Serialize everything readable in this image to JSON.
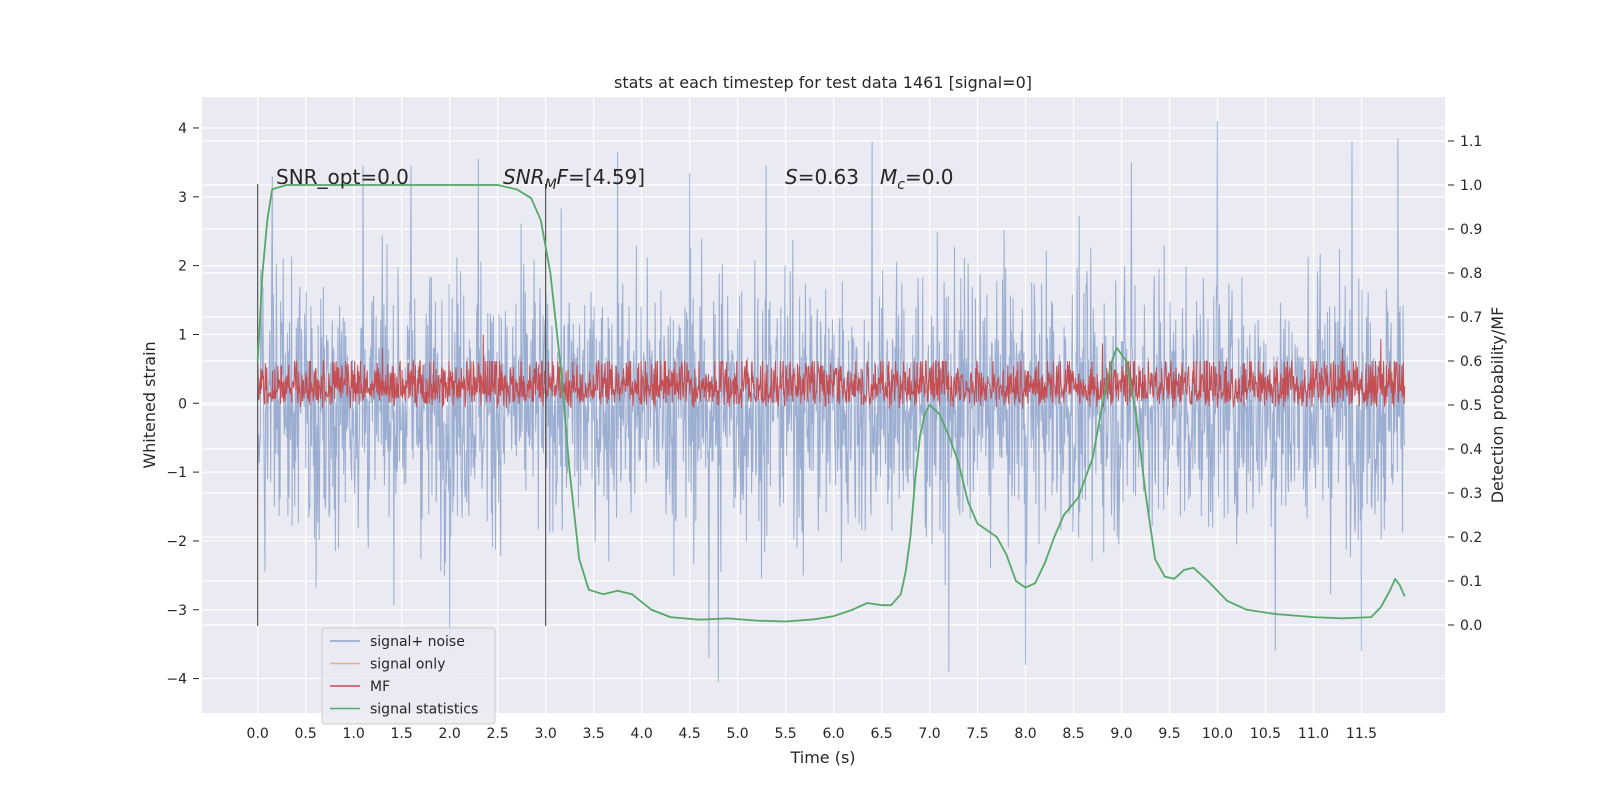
{
  "chart_data": {
    "type": "line",
    "title": "stats at each timestep for test data 1461 [signal=0]",
    "xlabel": "Time (s)",
    "ylabel": "Whitened strain",
    "ylabel_right": "Detection probability/MF",
    "xlim": [
      -0.58,
      12.37
    ],
    "ylim": [
      -4.5,
      4.45
    ],
    "ylim_right": [
      -0.2,
      1.2
    ],
    "x_ticks": [
      "0.0",
      "0.5",
      "1.0",
      "1.5",
      "2.0",
      "2.5",
      "3.0",
      "3.5",
      "4.0",
      "4.5",
      "5.0",
      "5.5",
      "6.0",
      "6.5",
      "7.0",
      "7.5",
      "8.0",
      "8.5",
      "9.0",
      "9.5",
      "10.0",
      "10.5",
      "11.0",
      "11.5"
    ],
    "y_ticks": [
      "4",
      "3",
      "2",
      "1",
      "0",
      "−1",
      "−2",
      "−3",
      "−4"
    ],
    "y_ticks_right": [
      "1.1",
      "1.0",
      "0.9",
      "0.8",
      "0.7",
      "0.6",
      "0.5",
      "0.4",
      "0.3",
      "0.2",
      "0.1",
      "0.0"
    ],
    "grid": true,
    "legend_position": "lower-left",
    "annotations": {
      "snr_opt": "SNR_opt=0.0",
      "snr_mf_main": "SNR",
      "snr_mf_sub": "M",
      "snr_mf_rest": "F=[4.59]",
      "s_main": "S",
      "s_rest": "=0.63",
      "mc_main": "M",
      "mc_sub": "c",
      "mc_rest": "=0.0"
    },
    "vertical_markers": [
      0.0,
      3.0
    ],
    "series": [
      {
        "name": "signal+ noise",
        "color": "#4c72b0",
        "axis": "left",
        "note": "dense whitened noise, approx. range -4 to 4",
        "x_range": [
          0.0,
          11.95
        ],
        "envelope_typical": [
          -2.6,
          2.6
        ],
        "peaks": [
          {
            "x": 0.15,
            "y": 3.3
          },
          {
            "x": 1.1,
            "y": 3.45
          },
          {
            "x": 1.6,
            "y": 3.45
          },
          {
            "x": 2.0,
            "y": 3.1
          },
          {
            "x": 2.3,
            "y": 3.55
          },
          {
            "x": 3.75,
            "y": 3.65
          },
          {
            "x": 4.5,
            "y": 3.35
          },
          {
            "x": 5.3,
            "y": 3.45
          },
          {
            "x": 6.4,
            "y": 3.8
          },
          {
            "x": 9.1,
            "y": 3.5
          },
          {
            "x": 10.0,
            "y": 4.1
          },
          {
            "x": 11.4,
            "y": 3.8
          },
          {
            "x": 11.88,
            "y": 3.85
          },
          {
            "x": 4.8,
            "y": -4.05
          },
          {
            "x": 7.2,
            "y": -3.9
          },
          {
            "x": 4.7,
            "y": -3.7
          },
          {
            "x": 8.0,
            "y": -3.8
          },
          {
            "x": 10.6,
            "y": -3.6
          },
          {
            "x": 2.0,
            "y": -3.6
          },
          {
            "x": 11.5,
            "y": -3.6
          }
        ]
      },
      {
        "name": "signal only",
        "color": "#dd8452",
        "axis": "left",
        "note": "zero everywhere (signal=0)"
      },
      {
        "name": "MF",
        "color": "#c44e52",
        "axis": "right",
        "note": "dense band, approx. 0.49 to 0.62 on right axis",
        "band": [
          0.49,
          0.6
        ],
        "peaks": [
          {
            "x": 1.3,
            "y": 0.63
          },
          {
            "x": 2.35,
            "y": 0.66
          },
          {
            "x": 11.7,
            "y": 0.65
          },
          {
            "x": 11.3,
            "y": 0.63
          },
          {
            "x": 8.8,
            "y": 0.64
          }
        ]
      },
      {
        "name": "signal statistics",
        "color": "#55a868",
        "axis": "right",
        "points": [
          [
            0.0,
            0.6
          ],
          [
            0.05,
            0.8
          ],
          [
            0.1,
            0.92
          ],
          [
            0.15,
            0.99
          ],
          [
            0.3,
            1.0
          ],
          [
            1.0,
            1.0
          ],
          [
            2.0,
            1.0
          ],
          [
            2.5,
            1.0
          ],
          [
            2.7,
            0.99
          ],
          [
            2.85,
            0.97
          ],
          [
            2.95,
            0.92
          ],
          [
            3.05,
            0.8
          ],
          [
            3.15,
            0.6
          ],
          [
            3.25,
            0.35
          ],
          [
            3.35,
            0.15
          ],
          [
            3.45,
            0.08
          ],
          [
            3.6,
            0.07
          ],
          [
            3.75,
            0.078
          ],
          [
            3.9,
            0.07
          ],
          [
            4.1,
            0.035
          ],
          [
            4.3,
            0.018
          ],
          [
            4.6,
            0.012
          ],
          [
            4.9,
            0.015
          ],
          [
            5.2,
            0.01
          ],
          [
            5.5,
            0.008
          ],
          [
            5.8,
            0.013
          ],
          [
            6.0,
            0.02
          ],
          [
            6.2,
            0.035
          ],
          [
            6.35,
            0.05
          ],
          [
            6.5,
            0.045
          ],
          [
            6.6,
            0.045
          ],
          [
            6.7,
            0.07
          ],
          [
            6.75,
            0.12
          ],
          [
            6.8,
            0.2
          ],
          [
            6.85,
            0.33
          ],
          [
            6.9,
            0.43
          ],
          [
            6.95,
            0.48
          ],
          [
            7.0,
            0.5
          ],
          [
            7.1,
            0.48
          ],
          [
            7.2,
            0.43
          ],
          [
            7.3,
            0.37
          ],
          [
            7.4,
            0.28
          ],
          [
            7.5,
            0.23
          ],
          [
            7.7,
            0.2
          ],
          [
            7.8,
            0.16
          ],
          [
            7.9,
            0.1
          ],
          [
            8.0,
            0.085
          ],
          [
            8.1,
            0.095
          ],
          [
            8.2,
            0.14
          ],
          [
            8.3,
            0.2
          ],
          [
            8.4,
            0.25
          ],
          [
            8.55,
            0.29
          ],
          [
            8.7,
            0.38
          ],
          [
            8.8,
            0.5
          ],
          [
            8.9,
            0.6
          ],
          [
            8.95,
            0.63
          ],
          [
            9.05,
            0.6
          ],
          [
            9.15,
            0.48
          ],
          [
            9.25,
            0.3
          ],
          [
            9.35,
            0.15
          ],
          [
            9.45,
            0.11
          ],
          [
            9.55,
            0.105
          ],
          [
            9.65,
            0.125
          ],
          [
            9.75,
            0.13
          ],
          [
            9.9,
            0.1
          ],
          [
            10.1,
            0.055
          ],
          [
            10.3,
            0.035
          ],
          [
            10.6,
            0.025
          ],
          [
            11.0,
            0.018
          ],
          [
            11.3,
            0.015
          ],
          [
            11.6,
            0.018
          ],
          [
            11.7,
            0.04
          ],
          [
            11.8,
            0.08
          ],
          [
            11.85,
            0.105
          ],
          [
            11.9,
            0.09
          ],
          [
            11.95,
            0.065
          ]
        ]
      }
    ],
    "legend": [
      {
        "label": "signal+ noise",
        "color": "#4c72b0"
      },
      {
        "label": "signal only",
        "color": "#dd8452"
      },
      {
        "label": "MF",
        "color": "#c44e52"
      },
      {
        "label": "signal statistics",
        "color": "#55a868"
      }
    ]
  }
}
